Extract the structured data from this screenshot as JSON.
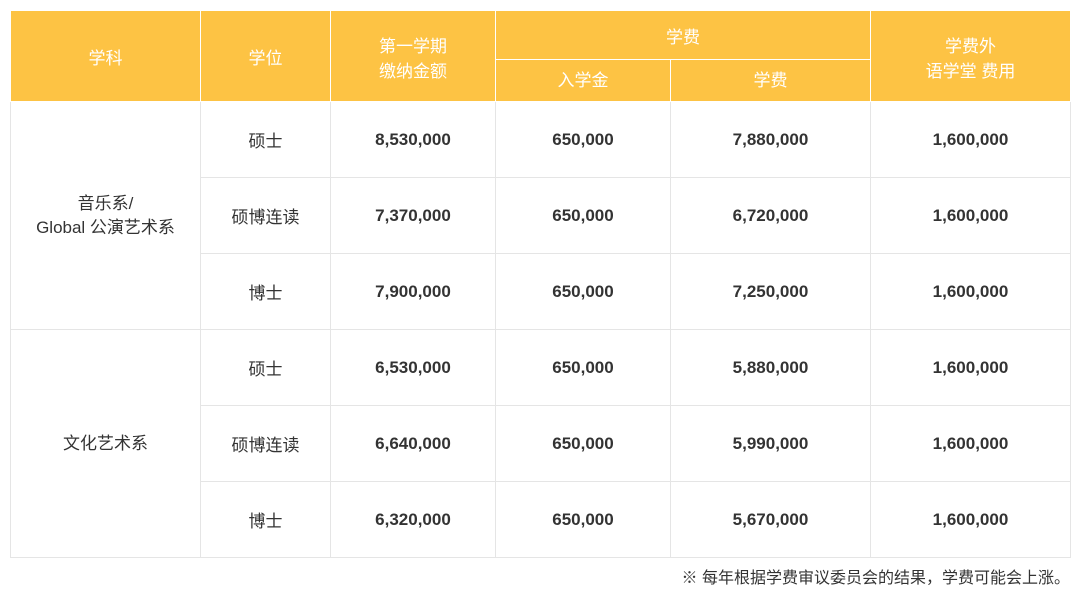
{
  "header": {
    "subject": "学科",
    "degree": "学位",
    "first_semester": "第一学期\n缴纳金额",
    "tuition_group": "学费",
    "admission": "入学金",
    "tuition": "学费",
    "extra": "学费外\n语学堂  费用"
  },
  "groups": [
    {
      "subject": "音乐系/\nGlobal 公演艺术系",
      "rows": [
        {
          "degree": "硕士",
          "first": "8,530,000",
          "admission": "650,000",
          "tuition": "7,880,000",
          "extra": "1,600,000"
        },
        {
          "degree": "硕博连读",
          "first": "7,370,000",
          "admission": "650,000",
          "tuition": "6,720,000",
          "extra": "1,600,000"
        },
        {
          "degree": "博士",
          "first": "7,900,000",
          "admission": "650,000",
          "tuition": "7,250,000",
          "extra": "1,600,000"
        }
      ]
    },
    {
      "subject": "文化艺术系",
      "rows": [
        {
          "degree": "硕士",
          "first": "6,530,000",
          "admission": "650,000",
          "tuition": "5,880,000",
          "extra": "1,600,000"
        },
        {
          "degree": "硕博连读",
          "first": "6,640,000",
          "admission": "650,000",
          "tuition": "5,990,000",
          "extra": "1,600,000"
        },
        {
          "degree": "博士",
          "first": "6,320,000",
          "admission": "650,000",
          "tuition": "5,670,000",
          "extra": "1,600,000"
        }
      ]
    }
  ],
  "footnote": "※ 每年根据学费审议委员会的结果，学费可能会上涨。",
  "colors": {
    "header_bg": "#fdc344",
    "header_text": "#ffffff",
    "cell_border": "#e5e5e5",
    "body_text": "#333333"
  }
}
